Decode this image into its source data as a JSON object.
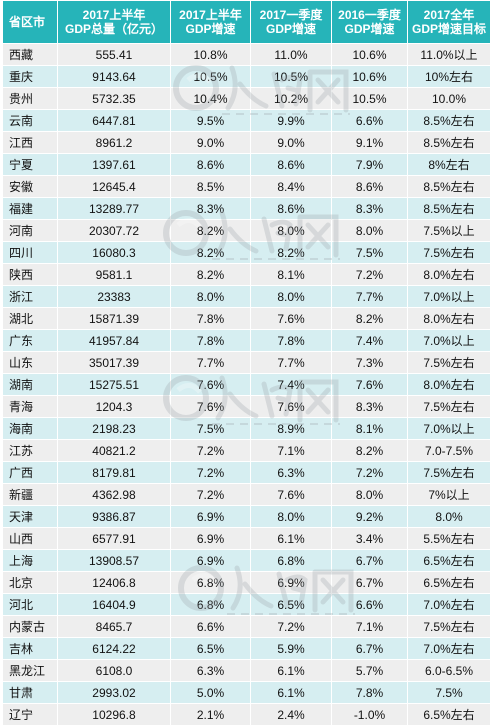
{
  "table": {
    "headers": [
      "省区市",
      "2017上半年\nGDP总量（亿元）",
      "2017上半年\nGDP增速",
      "2017一季度\nGDP增速",
      "2016一季度\nGDP增速",
      "2017全年\nGDP增速目标"
    ],
    "rows": [
      [
        "西藏",
        "555.41",
        "10.8%",
        "11.0%",
        "10.6%",
        "11.0%以上"
      ],
      [
        "重庆",
        "9143.64",
        "10.5%",
        "10.5%",
        "10.6%",
        "10%左右"
      ],
      [
        "贵州",
        "5732.35",
        "10.4%",
        "10.2%",
        "10.5%",
        "10.0%"
      ],
      [
        "云南",
        "6447.81",
        "9.5%",
        "9.9%",
        "6.6%",
        "8.5%左右"
      ],
      [
        "江西",
        "8961.2",
        "9.0%",
        "9.0%",
        "9.1%",
        "8.5%左右"
      ],
      [
        "宁夏",
        "1397.61",
        "8.6%",
        "8.6%",
        "7.9%",
        "8%左右"
      ],
      [
        "安徽",
        "12645.4",
        "8.5%",
        "8.4%",
        "8.6%",
        "8.5%左右"
      ],
      [
        "福建",
        "13289.77",
        "8.3%",
        "8.6%",
        "8.3%",
        "8.5%左右"
      ],
      [
        "河南",
        "20307.72",
        "8.2%",
        "8.0%",
        "8.0%",
        "7.5%以上"
      ],
      [
        "四川",
        "16080.3",
        "8.2%",
        "8.2%",
        "7.5%",
        "7.5%左右"
      ],
      [
        "陕西",
        "9581.1",
        "8.2%",
        "8.1%",
        "7.2%",
        "8.0%左右"
      ],
      [
        "浙江",
        "23383",
        "8.0%",
        "8.0%",
        "7.7%",
        "7.0%以上"
      ],
      [
        "湖北",
        "15871.39",
        "7.8%",
        "7.6%",
        "8.2%",
        "8.0%左右"
      ],
      [
        "广东",
        "41957.84",
        "7.8%",
        "7.8%",
        "7.4%",
        "7.0%以上"
      ],
      [
        "山东",
        "35017.39",
        "7.7%",
        "7.7%",
        "7.3%",
        "7.5%左右"
      ],
      [
        "湖南",
        "15275.51",
        "7.6%",
        "7.4%",
        "7.6%",
        "8.0%左右"
      ],
      [
        "青海",
        "1204.3",
        "7.6%",
        "7.6%",
        "8.3%",
        "7.5%左右"
      ],
      [
        "海南",
        "2198.23",
        "7.5%",
        "8.9%",
        "8.1%",
        "7.0%以上"
      ],
      [
        "江苏",
        "40821.2",
        "7.2%",
        "7.1%",
        "8.2%",
        "7.0-7.5%"
      ],
      [
        "广西",
        "8179.81",
        "7.2%",
        "6.3%",
        "7.2%",
        "7.5%左右"
      ],
      [
        "新疆",
        "4362.98",
        "7.2%",
        "7.6%",
        "8.0%",
        "7%以上"
      ],
      [
        "天津",
        "9386.87",
        "6.9%",
        "8.0%",
        "9.2%",
        "8.0%"
      ],
      [
        "山西",
        "6577.91",
        "6.9%",
        "6.1%",
        "3.4%",
        "5.5%左右"
      ],
      [
        "上海",
        "13908.57",
        "6.9%",
        "6.8%",
        "6.7%",
        "6.5%左右"
      ],
      [
        "北京",
        "12406.8",
        "6.8%",
        "6.9%",
        "6.7%",
        "6.5%左右"
      ],
      [
        "河北",
        "16404.9",
        "6.8%",
        "6.5%",
        "6.6%",
        "7.0%左右"
      ],
      [
        "内蒙古",
        "8465.7",
        "6.6%",
        "7.2%",
        "7.1%",
        "7.5%左右"
      ],
      [
        "吉林",
        "6124.22",
        "6.5%",
        "5.9%",
        "6.7%",
        "7.0%左右"
      ],
      [
        "黑龙江",
        "6108.0",
        "6.3%",
        "6.1%",
        "5.7%",
        "6.0-6.5%"
      ],
      [
        "甘肃",
        "2993.02",
        "5.0%",
        "6.1%",
        "7.8%",
        "7.5%"
      ],
      [
        "辽宁",
        "10296.8",
        "2.1%",
        "2.4%",
        "-1.0%",
        "6.5%左右"
      ]
    ]
  },
  "watermark": {
    "logo_text": "人民网",
    "domain_text": "people.cn",
    "color": "#9aa3a8"
  },
  "colors": {
    "header_bg": "#26b4b9",
    "row_odd": "#eeeeee",
    "row_even": "#d6eef1"
  }
}
